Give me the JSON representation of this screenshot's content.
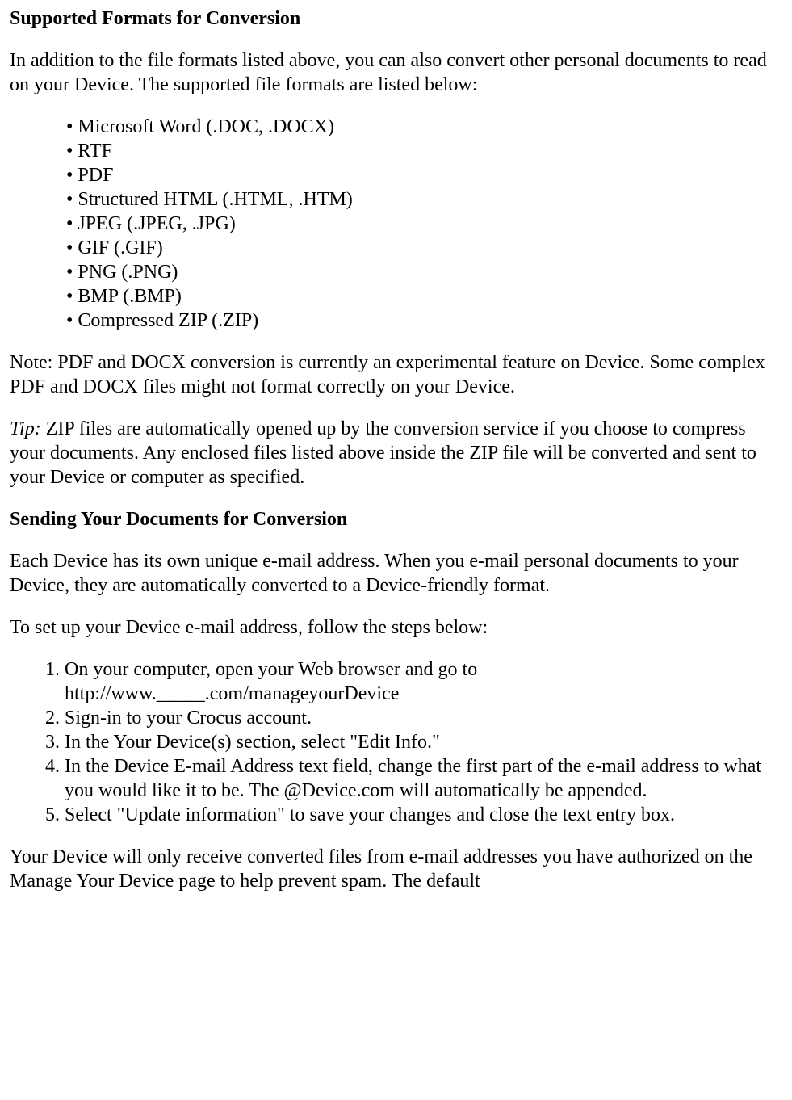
{
  "heading1": "Supported Formats for Conversion",
  "intro1": "In addition to the file formats listed above, you can also convert other personal documents to read on your Device. The supported file formats are listed below:",
  "bullet_mark": "•",
  "formats": [
    "Microsoft Word (.DOC, .DOCX)",
    "RTF",
    "PDF",
    "Structured HTML (.HTML, .HTM)",
    "JPEG (.JPEG, .JPG)",
    "GIF (.GIF)",
    "PNG (.PNG)",
    "BMP (.BMP)",
    "Compressed ZIP (.ZIP)"
  ],
  "note": "Note: PDF and DOCX conversion is currently an experimental feature on Device. Some complex PDF and DOCX files might not format correctly on your Device.",
  "tip_label": "Tip:",
  "tip_text": " ZIP files are automatically opened up by the conversion service if you choose to compress your documents. Any enclosed files listed above inside the ZIP file will be converted and sent to your Device or computer as specified.",
  "heading2": "Sending Your Documents for Conversion",
  "para2a": "Each Device has its own unique e-mail address. When you e-mail personal documents to your Device, they are automatically converted to a Device-friendly format.",
  "para2b": "To set up your Device e-mail address, follow the steps below:",
  "steps": [
    "On your computer, open your Web browser and go to http://www._____.com/manageyourDevice",
    "Sign-in to your Crocus account.",
    "In the Your Device(s) section, select \"Edit Info.\"",
    "In the Device E-mail Address text field, change the first part of the e-mail address to what you would like it to be. The @Device.com will automatically be appended.",
    "Select \"Update information\" to save your changes and close the text entry box."
  ],
  "trailing": "Your Device will only receive converted files from e-mail addresses you have authorized on the Manage Your Device page to help prevent spam. The default"
}
